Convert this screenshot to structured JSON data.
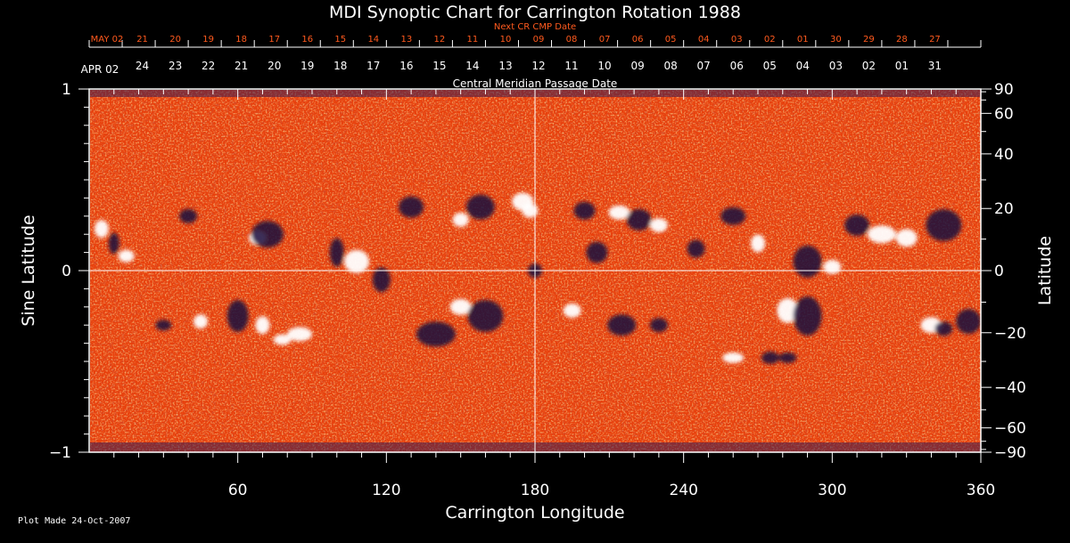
{
  "chart_data": {
    "type": "heatmap",
    "title": "MDI Synoptic Chart for Carrington Rotation 1988",
    "xlabel": "Carrington Longitude",
    "ylabel_left": "Sine Latitude",
    "ylabel_right": "Latitude",
    "xlim": [
      0,
      360
    ],
    "ylim": [
      -1,
      1
    ],
    "x_ticks": [
      60,
      120,
      180,
      240,
      300,
      360
    ],
    "y_ticks_left": [
      "1",
      "0",
      "−1"
    ],
    "y_ticks_right": [
      90,
      60,
      40,
      20,
      0,
      -20,
      -40,
      -60,
      -90
    ],
    "cmp_axis_title": "Central Meridian Passage Date",
    "cmp_dates": [
      "APR 02",
      "24",
      "23",
      "22",
      "21",
      "20",
      "19",
      "18",
      "17",
      "16",
      "15",
      "14",
      "13",
      "12",
      "11",
      "10",
      "09",
      "08",
      "07",
      "06",
      "05",
      "04",
      "03",
      "02",
      "01",
      "31"
    ],
    "next_cr_title": "Next CR CMP Date",
    "next_cr_dates": [
      "MAY 02",
      "21",
      "20",
      "19",
      "18",
      "17",
      "16",
      "15",
      "14",
      "13",
      "12",
      "11",
      "10",
      "09",
      "08",
      "07",
      "06",
      "05",
      "04",
      "03",
      "02",
      "01",
      "30",
      "29",
      "28",
      "27"
    ],
    "colors": {
      "background_field": "#e8400c",
      "positive_polarity": "#ffffff",
      "negative_polarity": "#1a0a3c",
      "next_cr_text": "#ff5a1e"
    }
  },
  "footer": {
    "plot_made": "Plot Made 24-Oct-2007"
  }
}
